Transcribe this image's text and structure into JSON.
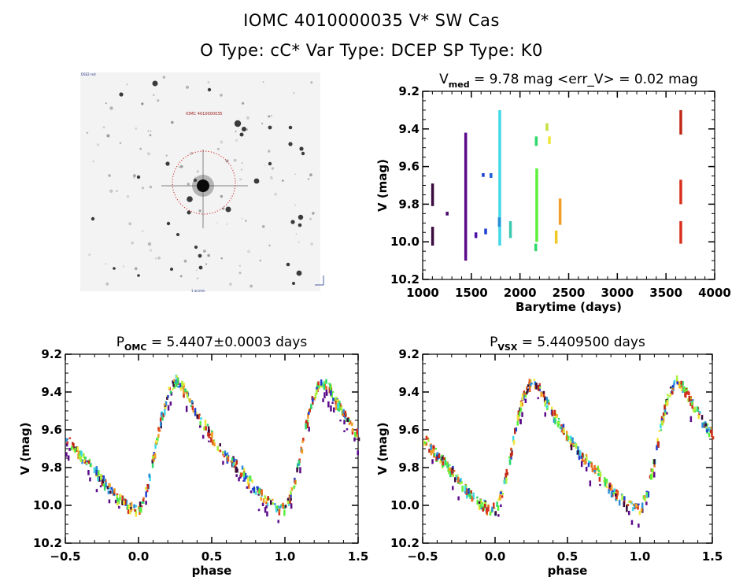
{
  "header": {
    "title_line1": "IOMC 4010000035    V* SW Cas",
    "title_line2": "O Type: cC*  Var Type: DCEP  SP Type: K0"
  },
  "image_panel": {
    "description": "DSS finder image, inverted grayscale, with red dotted circle around target",
    "circle_color": "#cc2222"
  },
  "colors": {
    "palette": [
      "#3b0a3e",
      "#5b0a8a",
      "#1f3fd0",
      "#2a8fd8",
      "#3fd8e6",
      "#2fd86a",
      "#5cf03a",
      "#a8f03a",
      "#f0e63a",
      "#f0a028",
      "#e8681c",
      "#d8301c",
      "#c02818"
    ]
  },
  "chart_data": [
    {
      "id": "lightcurve-time",
      "type": "scatter",
      "title": "V_med = 9.78 mag <err_V> = 0.02 mag",
      "title_main": "V",
      "title_sub": "med",
      "title_rest": " = 9.78 mag <err_V> = 0.02 mag",
      "xlabel": "Barytime (days)",
      "ylabel": "V (mag)",
      "xlim": [
        1000,
        4000
      ],
      "ylim": [
        10.2,
        9.2
      ],
      "xticks": [
        "1000",
        "1500",
        "2000",
        "2500",
        "3000",
        "3500",
        "4000"
      ],
      "yticks": [
        "9.2",
        "9.4",
        "9.6",
        "9.8",
        "10.0",
        "10.2"
      ],
      "segments": [
        {
          "x": 1100,
          "y0": 9.69,
          "y1": 9.81,
          "color": "#3b0a3e"
        },
        {
          "x": 1100,
          "y0": 9.92,
          "y1": 10.02,
          "color": "#3b0a3e"
        },
        {
          "x": 1250,
          "y0": 9.84,
          "y1": 9.86,
          "color": "#4b0a6e"
        },
        {
          "x": 1440,
          "y0": 9.42,
          "y1": 10.1,
          "color": "#5b0a8a"
        },
        {
          "x": 1545,
          "y0": 9.95,
          "y1": 9.98,
          "color": "#4a10a8"
        },
        {
          "x": 1620,
          "y0": 9.635,
          "y1": 9.655,
          "color": "#1f3fd0"
        },
        {
          "x": 1645,
          "y0": 9.93,
          "y1": 9.96,
          "color": "#1f3fd0"
        },
        {
          "x": 1700,
          "y0": 9.635,
          "y1": 9.66,
          "color": "#1f5fd8"
        },
        {
          "x": 1790,
          "y0": 9.3,
          "y1": 10.02,
          "color": "#3fd8e6"
        },
        {
          "x": 1785,
          "y0": 9.87,
          "y1": 9.92,
          "color": "#2a8fd8"
        },
        {
          "x": 1900,
          "y0": 9.89,
          "y1": 9.98,
          "color": "#3fc8b0"
        },
        {
          "x": 2165,
          "y0": 9.44,
          "y1": 9.49,
          "color": "#2fd86a"
        },
        {
          "x": 2170,
          "y0": 9.61,
          "y1": 10.0,
          "color": "#5cf03a"
        },
        {
          "x": 2160,
          "y0": 10.01,
          "y1": 10.05,
          "color": "#2fd86a"
        },
        {
          "x": 2275,
          "y0": 9.37,
          "y1": 9.41,
          "color": "#c8e040"
        },
        {
          "x": 2300,
          "y0": 9.44,
          "y1": 9.48,
          "color": "#f0e63a"
        },
        {
          "x": 2370,
          "y0": 9.94,
          "y1": 10.01,
          "color": "#f0c828"
        },
        {
          "x": 2410,
          "y0": 9.77,
          "y1": 9.91,
          "color": "#f0a028"
        },
        {
          "x": 3650,
          "y0": 9.3,
          "y1": 9.43,
          "color": "#c02818"
        },
        {
          "x": 3650,
          "y0": 9.67,
          "y1": 9.8,
          "color": "#d8301c"
        },
        {
          "x": 3650,
          "y0": 9.89,
          "y1": 10.01,
          "color": "#d8301c"
        }
      ]
    },
    {
      "id": "phased-omc",
      "type": "scatter",
      "title": "P_OMC = 5.4407±0.0003 days",
      "title_main": "P",
      "title_sub": "OMC",
      "title_rest": " = 5.4407±0.0003 days",
      "xlabel": "phase",
      "ylabel": "V (mag)",
      "xlim": [
        -0.5,
        1.5
      ],
      "ylim": [
        10.2,
        9.2
      ],
      "xticks": [
        "-0.5",
        "0.0",
        "0.5",
        "1.0",
        "1.5"
      ],
      "yticks": [
        "9.2",
        "9.4",
        "9.6",
        "9.8",
        "10.0",
        "10.2"
      ],
      "curve": {
        "phase": [
          0.0,
          0.05,
          0.1,
          0.15,
          0.2,
          0.25,
          0.3,
          0.35,
          0.4,
          0.45,
          0.5,
          0.55,
          0.6,
          0.65,
          0.7,
          0.75,
          0.8,
          0.85,
          0.9,
          0.95,
          1.0
        ],
        "mag": [
          10.0,
          9.9,
          9.72,
          9.52,
          9.38,
          9.32,
          9.36,
          9.44,
          9.5,
          9.56,
          9.62,
          9.68,
          9.72,
          9.76,
          9.8,
          9.85,
          9.9,
          9.94,
          9.97,
          10.0,
          10.0
        ]
      }
    },
    {
      "id": "phased-vsx",
      "type": "scatter",
      "title": "P_VSX = 5.4409500 days",
      "title_main": "P",
      "title_sub": "VSX",
      "title_rest": " = 5.4409500 days",
      "xlabel": "phase",
      "ylabel": "V (mag)",
      "xlim": [
        -0.5,
        1.5
      ],
      "ylim": [
        10.2,
        9.2
      ],
      "xticks": [
        "-0.5",
        "0.0",
        "0.5",
        "1.0",
        "1.5"
      ],
      "yticks": [
        "9.2",
        "9.4",
        "9.6",
        "9.8",
        "10.0",
        "10.2"
      ],
      "curve": {
        "phase": [
          0.0,
          0.05,
          0.1,
          0.15,
          0.2,
          0.25,
          0.3,
          0.35,
          0.4,
          0.45,
          0.5,
          0.55,
          0.6,
          0.65,
          0.7,
          0.75,
          0.8,
          0.85,
          0.9,
          0.95,
          1.0
        ],
        "mag": [
          10.0,
          9.9,
          9.72,
          9.52,
          9.38,
          9.32,
          9.36,
          9.44,
          9.5,
          9.56,
          9.62,
          9.68,
          9.72,
          9.76,
          9.8,
          9.85,
          9.9,
          9.94,
          9.97,
          10.0,
          10.0
        ]
      }
    }
  ]
}
